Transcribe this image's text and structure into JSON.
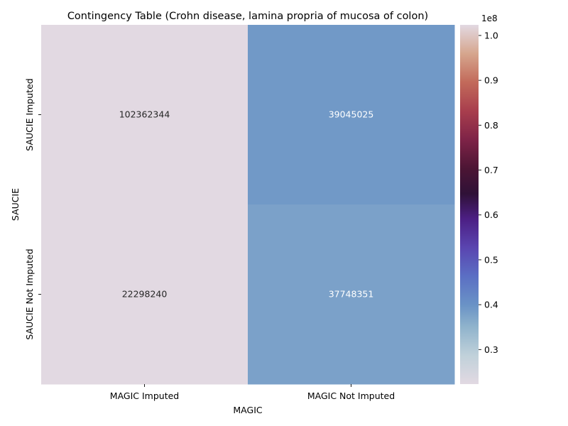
{
  "chart_data": {
    "type": "heatmap",
    "title": "Contingency Table (Crohn disease, lamina propria of mucosa of colon)",
    "xlabel": "MAGIC",
    "ylabel": "SAUCIE",
    "x_categories": [
      "MAGIC Imputed",
      "MAGIC Not Imputed"
    ],
    "y_categories": [
      "SAUCIE Imputed",
      "SAUCIE Not Imputed"
    ],
    "values": [
      [
        102362344,
        39045025
      ],
      [
        22298240,
        37748351
      ]
    ],
    "cell_labels": [
      [
        "102362344",
        "39045025"
      ],
      [
        "22298240",
        "37748351"
      ]
    ],
    "colorbar": {
      "min": 22298240,
      "max": 102362344,
      "ticks": [
        0.3,
        0.4,
        0.5,
        0.6,
        0.7,
        0.8,
        0.9,
        1.0
      ],
      "tick_labels": [
        "0.3",
        "0.4",
        "0.5",
        "0.6",
        "0.7",
        "0.8",
        "0.9",
        "1.0"
      ],
      "multiplier_label": "1e8",
      "tick_scale": 100000000,
      "colormap": "twilight (reversed-ish: light lavender at max, blue mid, dark purple at low end of scale)"
    }
  }
}
